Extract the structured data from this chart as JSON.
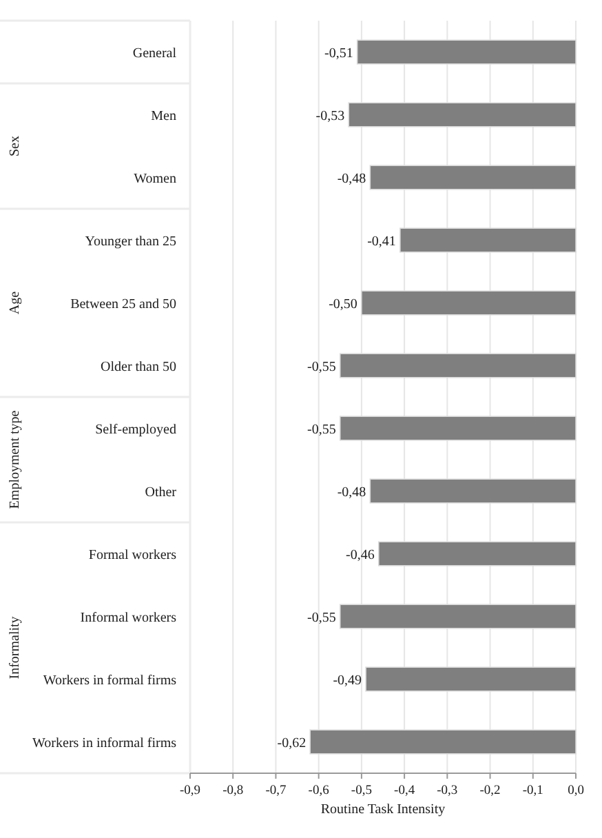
{
  "chart_data": {
    "type": "bar",
    "orientation": "horizontal",
    "xlabel": "Routine Task Intensity",
    "categories": [
      "General",
      "Men",
      "Women",
      "Younger than 25",
      "Between 25 and 50",
      "Older than 50",
      "Self-employed",
      "Other",
      "Formal workers",
      "Informal workers",
      "Workers in formal firms",
      "Workers in informal firms"
    ],
    "values": [
      -0.51,
      -0.53,
      -0.48,
      -0.41,
      -0.5,
      -0.55,
      -0.55,
      -0.48,
      -0.46,
      -0.55,
      -0.49,
      -0.62
    ],
    "value_labels": [
      "-0,51",
      "-0,53",
      "-0,48",
      "-0,41",
      "-0,50",
      "-0,55",
      "-0,55",
      "-0,48",
      "-0,46",
      "-0,55",
      "-0,49",
      "-0,62"
    ],
    "color": "#7f7f7f",
    "xlim": [
      -0.9,
      0
    ],
    "xticks": [
      {
        "value": -0.9,
        "label": "-0,9"
      },
      {
        "value": -0.8,
        "label": "-0,8"
      },
      {
        "value": -0.7,
        "label": "-0,7"
      },
      {
        "value": -0.6,
        "label": "-0,6"
      },
      {
        "value": -0.5,
        "label": "-0,5"
      },
      {
        "value": -0.4,
        "label": "-0,4"
      },
      {
        "value": -0.3,
        "label": "-0,3"
      },
      {
        "value": -0.2,
        "label": "-0,2"
      },
      {
        "value": -0.1,
        "label": "-0,1"
      },
      {
        "value": 0,
        "label": "0,0"
      }
    ],
    "grid": "x",
    "annotations": [
      "Sex",
      "Age",
      "Employment type",
      "Informality"
    ]
  }
}
